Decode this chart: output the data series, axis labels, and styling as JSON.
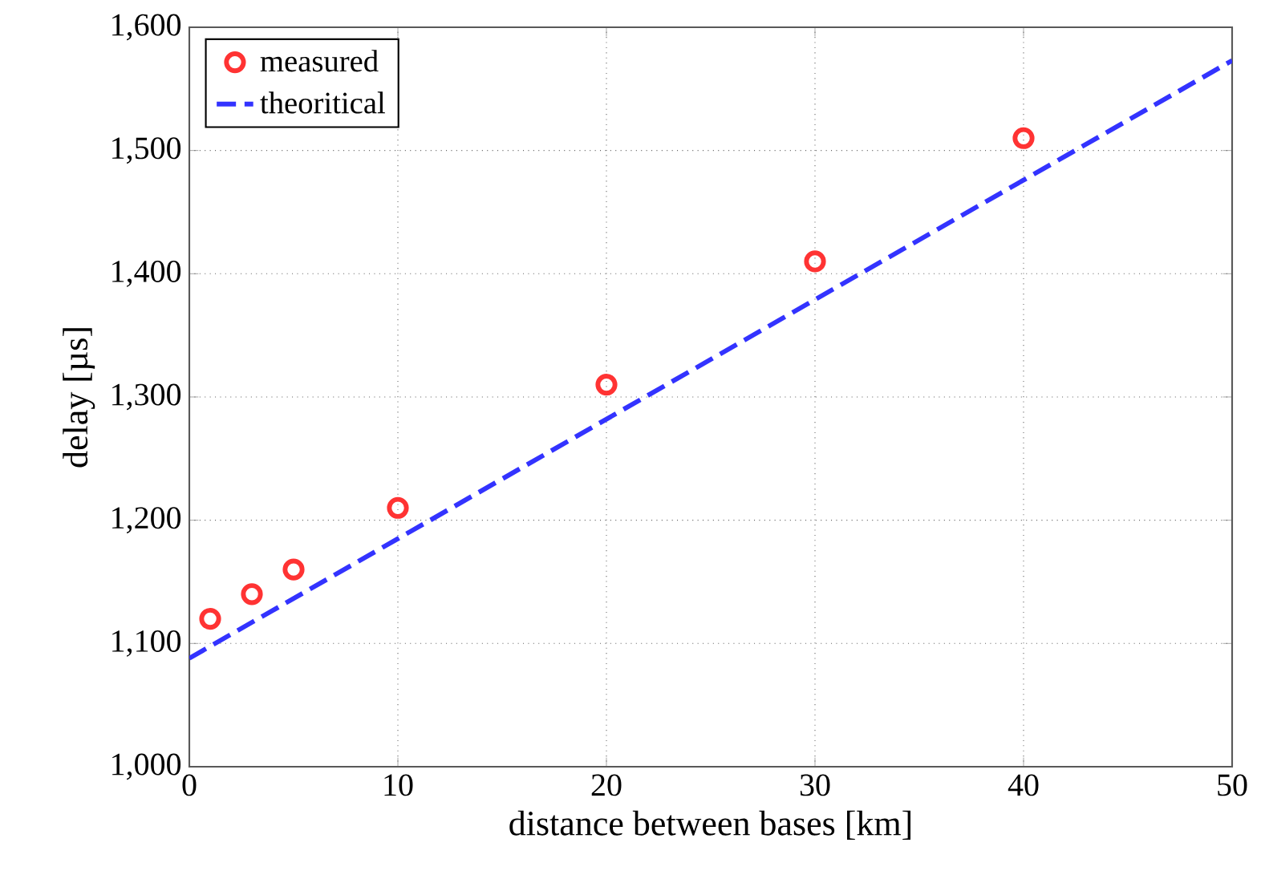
{
  "chart_data": {
    "type": "scatter",
    "xlabel": "distance between bases [km]",
    "ylabel": "delay [µs]",
    "xlim": [
      0,
      50
    ],
    "xticks": [
      0,
      10,
      20,
      30,
      40,
      50
    ],
    "ylim": [
      1000,
      1600
    ],
    "yticks": [
      {
        "value": 1000,
        "label": "1,000"
      },
      {
        "value": 1100,
        "label": "1,100"
      },
      {
        "value": 1200,
        "label": "1,200"
      },
      {
        "value": 1300,
        "label": "1,300"
      },
      {
        "value": 1400,
        "label": "1,400"
      },
      {
        "value": 1500,
        "label": "1,500"
      },
      {
        "value": 1600,
        "label": "1,600"
      }
    ],
    "grid": true,
    "legend": "top left",
    "series": [
      {
        "name": "measured",
        "marker": "circle",
        "color": "#ff3333",
        "x": [
          1,
          3,
          5,
          10,
          20,
          30,
          40
        ],
        "values": [
          1120,
          1140,
          1160,
          1210,
          1310,
          1410,
          1510
        ]
      },
      {
        "name": "theoritical",
        "type": "line",
        "line_style": "dashed",
        "marker": "none",
        "color": "#3333ff",
        "x": [
          0,
          50
        ],
        "values": [
          1088,
          1573
        ]
      }
    ]
  }
}
